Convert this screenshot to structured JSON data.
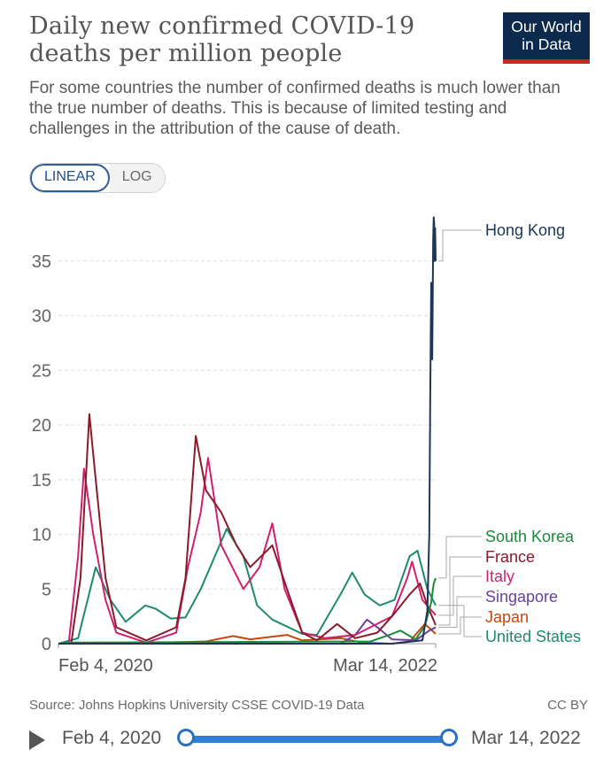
{
  "header": {
    "title": "Daily new confirmed COVID-19 deaths per million people",
    "subtitle": "For some countries the number of confirmed deaths is much lower than the true number of deaths. This is because of limited testing and challenges in the attribution of the cause of death.",
    "logo_line1": "Our World",
    "logo_line2": "in Data",
    "logo_color": "#0b2a4e",
    "logo_accent": "#ce261e"
  },
  "scale_toggle": {
    "linear": "LINEAR",
    "log": "LOG",
    "selected": "LINEAR"
  },
  "footer": {
    "source": "Source: Johns Hopkins University CSSE COVID-19 Data",
    "license": "CC BY"
  },
  "timeline": {
    "start": "Feb 4, 2020",
    "end": "Mar 14, 2022",
    "play_icon": "play-icon"
  },
  "chart_data": {
    "type": "line",
    "title": "Daily new confirmed COVID-19 deaths per million people",
    "x_start": "2020-02-04",
    "x_end": "2022-03-14",
    "x_tick_labels": [
      "Feb 4, 2020",
      "Mar 14, 2022"
    ],
    "ylim": [
      0,
      39
    ],
    "y_ticks": [
      0,
      5,
      10,
      15,
      20,
      25,
      30,
      35
    ],
    "grid": true,
    "legend": "right-end labels",
    "series": [
      {
        "name": "Hong Kong",
        "color": "#1d3557",
        "points": [
          [
            "2020-02-04",
            0
          ],
          [
            "2021-12-15",
            0
          ],
          [
            "2022-02-15",
            0.3
          ],
          [
            "2022-02-25",
            3
          ],
          [
            "2022-03-01",
            10
          ],
          [
            "2022-03-03",
            23
          ],
          [
            "2022-03-05",
            33
          ],
          [
            "2022-03-07",
            26
          ],
          [
            "2022-03-09",
            37
          ],
          [
            "2022-03-10",
            39
          ],
          [
            "2022-03-11",
            38.5
          ],
          [
            "2022-03-12",
            35
          ],
          [
            "2022-03-13",
            38
          ],
          [
            "2022-03-14",
            35
          ]
        ]
      },
      {
        "name": "South Korea",
        "color": "#1a8a3c",
        "points": [
          [
            "2020-02-04",
            0
          ],
          [
            "2020-03-01",
            0.1
          ],
          [
            "2021-11-01",
            0.2
          ],
          [
            "2021-12-10",
            0.8
          ],
          [
            "2022-01-01",
            1.2
          ],
          [
            "2022-02-01",
            0.4
          ],
          [
            "2022-02-20",
            1.6
          ],
          [
            "2022-03-05",
            3.8
          ],
          [
            "2022-03-10",
            5.5
          ],
          [
            "2022-03-14",
            6
          ]
        ]
      },
      {
        "name": "France",
        "color": "#8b1a2b",
        "points": [
          [
            "2020-02-04",
            0
          ],
          [
            "2020-03-01",
            0
          ],
          [
            "2020-03-20",
            6
          ],
          [
            "2020-04-07",
            21
          ],
          [
            "2020-04-20",
            15
          ],
          [
            "2020-05-10",
            6
          ],
          [
            "2020-06-01",
            1.5
          ],
          [
            "2020-08-01",
            0.3
          ],
          [
            "2020-10-01",
            1.5
          ],
          [
            "2020-10-20",
            6
          ],
          [
            "2020-11-10",
            19
          ],
          [
            "2020-12-01",
            14
          ],
          [
            "2021-01-01",
            12
          ],
          [
            "2021-02-01",
            9
          ],
          [
            "2021-03-01",
            7
          ],
          [
            "2021-04-15",
            9
          ],
          [
            "2021-05-15",
            5
          ],
          [
            "2021-06-15",
            1
          ],
          [
            "2021-07-15",
            0.3
          ],
          [
            "2021-08-25",
            1.8
          ],
          [
            "2021-10-01",
            0.5
          ],
          [
            "2021-11-15",
            1
          ],
          [
            "2021-12-15",
            2.5
          ],
          [
            "2022-01-20",
            4.5
          ],
          [
            "2022-02-10",
            5.5
          ],
          [
            "2022-02-25",
            3.5
          ],
          [
            "2022-03-14",
            1.7
          ]
        ]
      },
      {
        "name": "Italy",
        "color": "#d11f6c",
        "points": [
          [
            "2020-02-04",
            0
          ],
          [
            "2020-02-25",
            0
          ],
          [
            "2020-03-15",
            8
          ],
          [
            "2020-03-27",
            16
          ],
          [
            "2020-04-15",
            10
          ],
          [
            "2020-05-10",
            4
          ],
          [
            "2020-06-01",
            1
          ],
          [
            "2020-08-01",
            0.1
          ],
          [
            "2020-10-01",
            1
          ],
          [
            "2020-10-25",
            7
          ],
          [
            "2020-11-20",
            12
          ],
          [
            "2020-12-05",
            17
          ],
          [
            "2021-01-01",
            9
          ],
          [
            "2021-02-15",
            5
          ],
          [
            "2021-03-20",
            7
          ],
          [
            "2021-04-15",
            11
          ],
          [
            "2021-05-10",
            5
          ],
          [
            "2021-06-15",
            1
          ],
          [
            "2021-08-01",
            0.5
          ],
          [
            "2021-10-01",
            0.8
          ],
          [
            "2021-12-15",
            2.5
          ],
          [
            "2022-01-15",
            6
          ],
          [
            "2022-01-25",
            7.5
          ],
          [
            "2022-02-15",
            4
          ],
          [
            "2022-03-14",
            2.6
          ]
        ]
      },
      {
        "name": "Singapore",
        "color": "#6b3fa0",
        "points": [
          [
            "2020-02-04",
            0
          ],
          [
            "2021-09-01",
            0
          ],
          [
            "2021-10-01",
            0.8
          ],
          [
            "2021-10-25",
            2.2
          ],
          [
            "2021-11-15",
            1.5
          ],
          [
            "2021-12-15",
            0.4
          ],
          [
            "2022-02-01",
            0.3
          ],
          [
            "2022-03-01",
            1.2
          ],
          [
            "2022-03-14",
            1.5
          ]
        ]
      },
      {
        "name": "Japan",
        "color": "#c4470e",
        "points": [
          [
            "2020-02-04",
            0
          ],
          [
            "2020-05-01",
            0.1
          ],
          [
            "2020-06-15",
            0
          ],
          [
            "2020-12-01",
            0.2
          ],
          [
            "2021-01-25",
            0.7
          ],
          [
            "2021-03-01",
            0.4
          ],
          [
            "2021-05-15",
            0.8
          ],
          [
            "2021-06-15",
            0.3
          ],
          [
            "2021-09-01",
            0.5
          ],
          [
            "2021-10-15",
            0.1
          ],
          [
            "2021-12-15",
            0
          ],
          [
            "2022-01-20",
            0.2
          ],
          [
            "2022-02-20",
            1.8
          ],
          [
            "2022-03-14",
            0.9
          ]
        ]
      },
      {
        "name": "United States",
        "color": "#1e8b6f",
        "points": [
          [
            "2020-02-04",
            0
          ],
          [
            "2020-03-15",
            0.5
          ],
          [
            "2020-04-20",
            7
          ],
          [
            "2020-05-20",
            4
          ],
          [
            "2020-06-20",
            2
          ],
          [
            "2020-07-30",
            3.5
          ],
          [
            "2020-08-20",
            3.2
          ],
          [
            "2020-09-20",
            2.3
          ],
          [
            "2020-10-20",
            2.4
          ],
          [
            "2020-11-20",
            5
          ],
          [
            "2021-01-12",
            10.5
          ],
          [
            "2021-02-15",
            8
          ],
          [
            "2021-03-15",
            3.5
          ],
          [
            "2021-04-15",
            2.2
          ],
          [
            "2021-06-15",
            0.9
          ],
          [
            "2021-07-15",
            0.8
          ],
          [
            "2021-09-01",
            4.5
          ],
          [
            "2021-09-25",
            6.5
          ],
          [
            "2021-10-20",
            4.5
          ],
          [
            "2021-11-20",
            3.5
          ],
          [
            "2021-12-20",
            4
          ],
          [
            "2022-01-20",
            8
          ],
          [
            "2022-02-05",
            8.5
          ],
          [
            "2022-02-25",
            5
          ],
          [
            "2022-03-14",
            3.5
          ]
        ]
      }
    ]
  }
}
